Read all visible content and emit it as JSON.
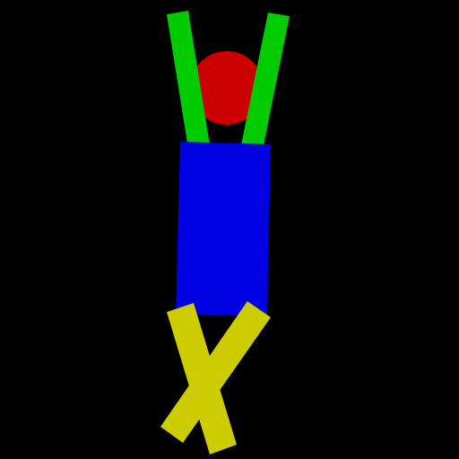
{
  "scene": {
    "background": "#000000",
    "colors": {
      "head": "#cc0000",
      "torso": "#0000e0",
      "arms": "#00cc00",
      "legs": "#cccc00"
    }
  }
}
